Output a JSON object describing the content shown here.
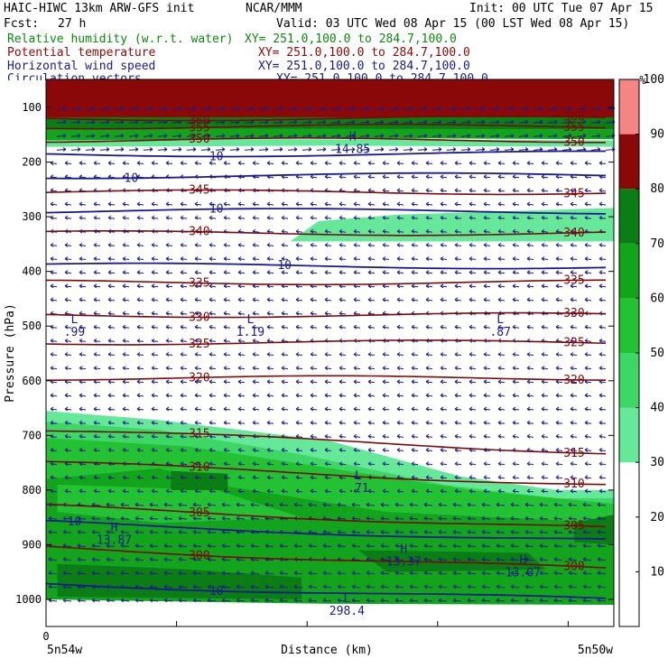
{
  "header": {
    "title": "HAIC-HIWC 13km ARW-GFS init",
    "org": "NCAR/MMM",
    "init": "Init: 00 UTC Tue 07 Apr 15",
    "fcst_label": "Fcst:",
    "fcst_value": "27 h",
    "valid": "Valid: 03 UTC Wed 08 Apr 15 (00 LST Wed 08 Apr 15)",
    "fields": [
      {
        "name": "Relative humidity (w.r.t. water)",
        "xy": "XY= 251.0,100.0 to 284.7,100.0",
        "color": "#0a8a0a"
      },
      {
        "name": "Potential temperature",
        "xy": "XY= 251.0,100.0 to 284.7,100.0",
        "color": "#8a0a0a"
      },
      {
        "name": "Horizontal wind speed",
        "xy": "XY= 251.0,100.0 to 284.7,100.0",
        "color": "#1a1a8c"
      },
      {
        "name": "Circulation vectors",
        "xy": "XY= 251.0,100.0 to 284.7,100.0",
        "color": "#1a1a8c"
      }
    ]
  },
  "chart_data": {
    "type": "heatmap",
    "description_fields": [
      "relative humidity (shaded)",
      "potential temperature (contours)",
      "horizontal wind speed (contours)",
      "circulation vectors"
    ],
    "ylabel": "Pressure (hPa)",
    "xlabel": "Distance (km)",
    "x_start_label": "5n54w",
    "x_end_label": "5n50w",
    "x_zero_label": "0",
    "yticks": [
      100,
      200,
      300,
      400,
      500,
      600,
      700,
      800,
      900,
      1000
    ],
    "ylim": [
      1050,
      50
    ],
    "colorbar": {
      "unit": "%",
      "ticks": [
        10,
        20,
        30,
        40,
        50,
        60,
        70,
        80,
        90,
        100
      ],
      "levels": [
        {
          "from": 50,
          "to": 60,
          "color": "#66e899"
        },
        {
          "from": 60,
          "to": 70,
          "color": "#3cd765"
        },
        {
          "from": 70,
          "to": 80,
          "color": "#22c232"
        },
        {
          "from": 80,
          "to": 90,
          "color": "#12a51c"
        },
        {
          "from": 90,
          "to": 100,
          "color": "#0a7d14"
        },
        {
          "from": 100,
          "to": 110,
          "color": "#8a0808"
        },
        {
          "from": 110,
          "to": 120,
          "color": "#f58585"
        }
      ]
    },
    "theta_contours": [
      {
        "label": "360",
        "p": 120
      },
      {
        "label": "355",
        "p": 135
      },
      {
        "label": "350",
        "p": 160
      },
      {
        "label": "345",
        "p": 255
      },
      {
        "label": "340",
        "p": 330
      },
      {
        "label": "335",
        "p": 420
      },
      {
        "label": "330",
        "p": 480
      },
      {
        "label": "325",
        "p": 530
      },
      {
        "label": "320",
        "p": 595
      },
      {
        "label": "315",
        "p": 690
      },
      {
        "label": "310",
        "p": 750
      },
      {
        "label": "305",
        "p": 830
      },
      {
        "label": "300",
        "p": 905
      }
    ],
    "wind_contours": [
      {
        "label": "10",
        "p": 185
      },
      {
        "label": "10",
        "p": 225
      },
      {
        "label": "10",
        "p": 290
      },
      {
        "label": "10",
        "p": 390
      },
      {
        "label": "10",
        "p": 860
      },
      {
        "label": "10",
        "p": 970
      }
    ],
    "extrema": [
      {
        "type": "L",
        "value": ".99",
        "x_frac": 0.05,
        "p": 495
      },
      {
        "type": "L",
        "value": "1.19",
        "x_frac": 0.36,
        "p": 495
      },
      {
        "type": "L",
        "value": ".87",
        "x_frac": 0.8,
        "p": 495
      },
      {
        "type": "L",
        "value": ".71",
        "x_frac": 0.55,
        "p": 780
      },
      {
        "type": "H",
        "value": "13.87",
        "x_frac": 0.12,
        "p": 875
      },
      {
        "type": "H",
        "value": "13.37",
        "x_frac": 0.63,
        "p": 915
      },
      {
        "type": "H",
        "value": "13.07",
        "x_frac": 0.84,
        "p": 935
      },
      {
        "type": "H",
        "value": "14.85",
        "x_frac": 0.54,
        "p": 160
      },
      {
        "type": "L",
        "value": "298.4",
        "x_frac": 0.53,
        "p": 1005
      }
    ]
  }
}
